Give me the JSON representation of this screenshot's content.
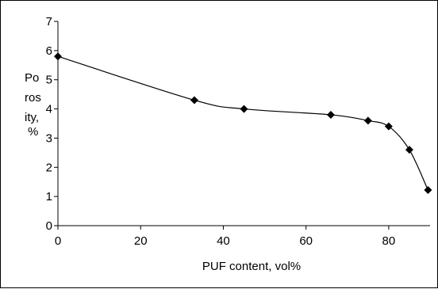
{
  "chart_data": {
    "type": "line",
    "xlabel": "PUF content, vol%",
    "ylabel_lines": [
      "Po",
      "ros",
      "ity,",
      "%"
    ],
    "xlim": [
      0,
      90
    ],
    "ylim": [
      0,
      7
    ],
    "x_ticks": [
      0,
      20,
      40,
      60,
      80
    ],
    "y_ticks": [
      0,
      1,
      2,
      3,
      4,
      5,
      6,
      7
    ],
    "grid": false,
    "series": [
      {
        "marker": "diamond",
        "color": "#000000",
        "points": [
          {
            "x": 0,
            "y": 5.8
          },
          {
            "x": 33,
            "y": 4.3
          },
          {
            "x": 45,
            "y": 4.0
          },
          {
            "x": 66,
            "y": 3.8
          },
          {
            "x": 75,
            "y": 3.6
          },
          {
            "x": 80,
            "y": 3.4
          },
          {
            "x": 85,
            "y": 2.6
          },
          {
            "x": 89.5,
            "y": 1.22
          }
        ]
      }
    ]
  }
}
